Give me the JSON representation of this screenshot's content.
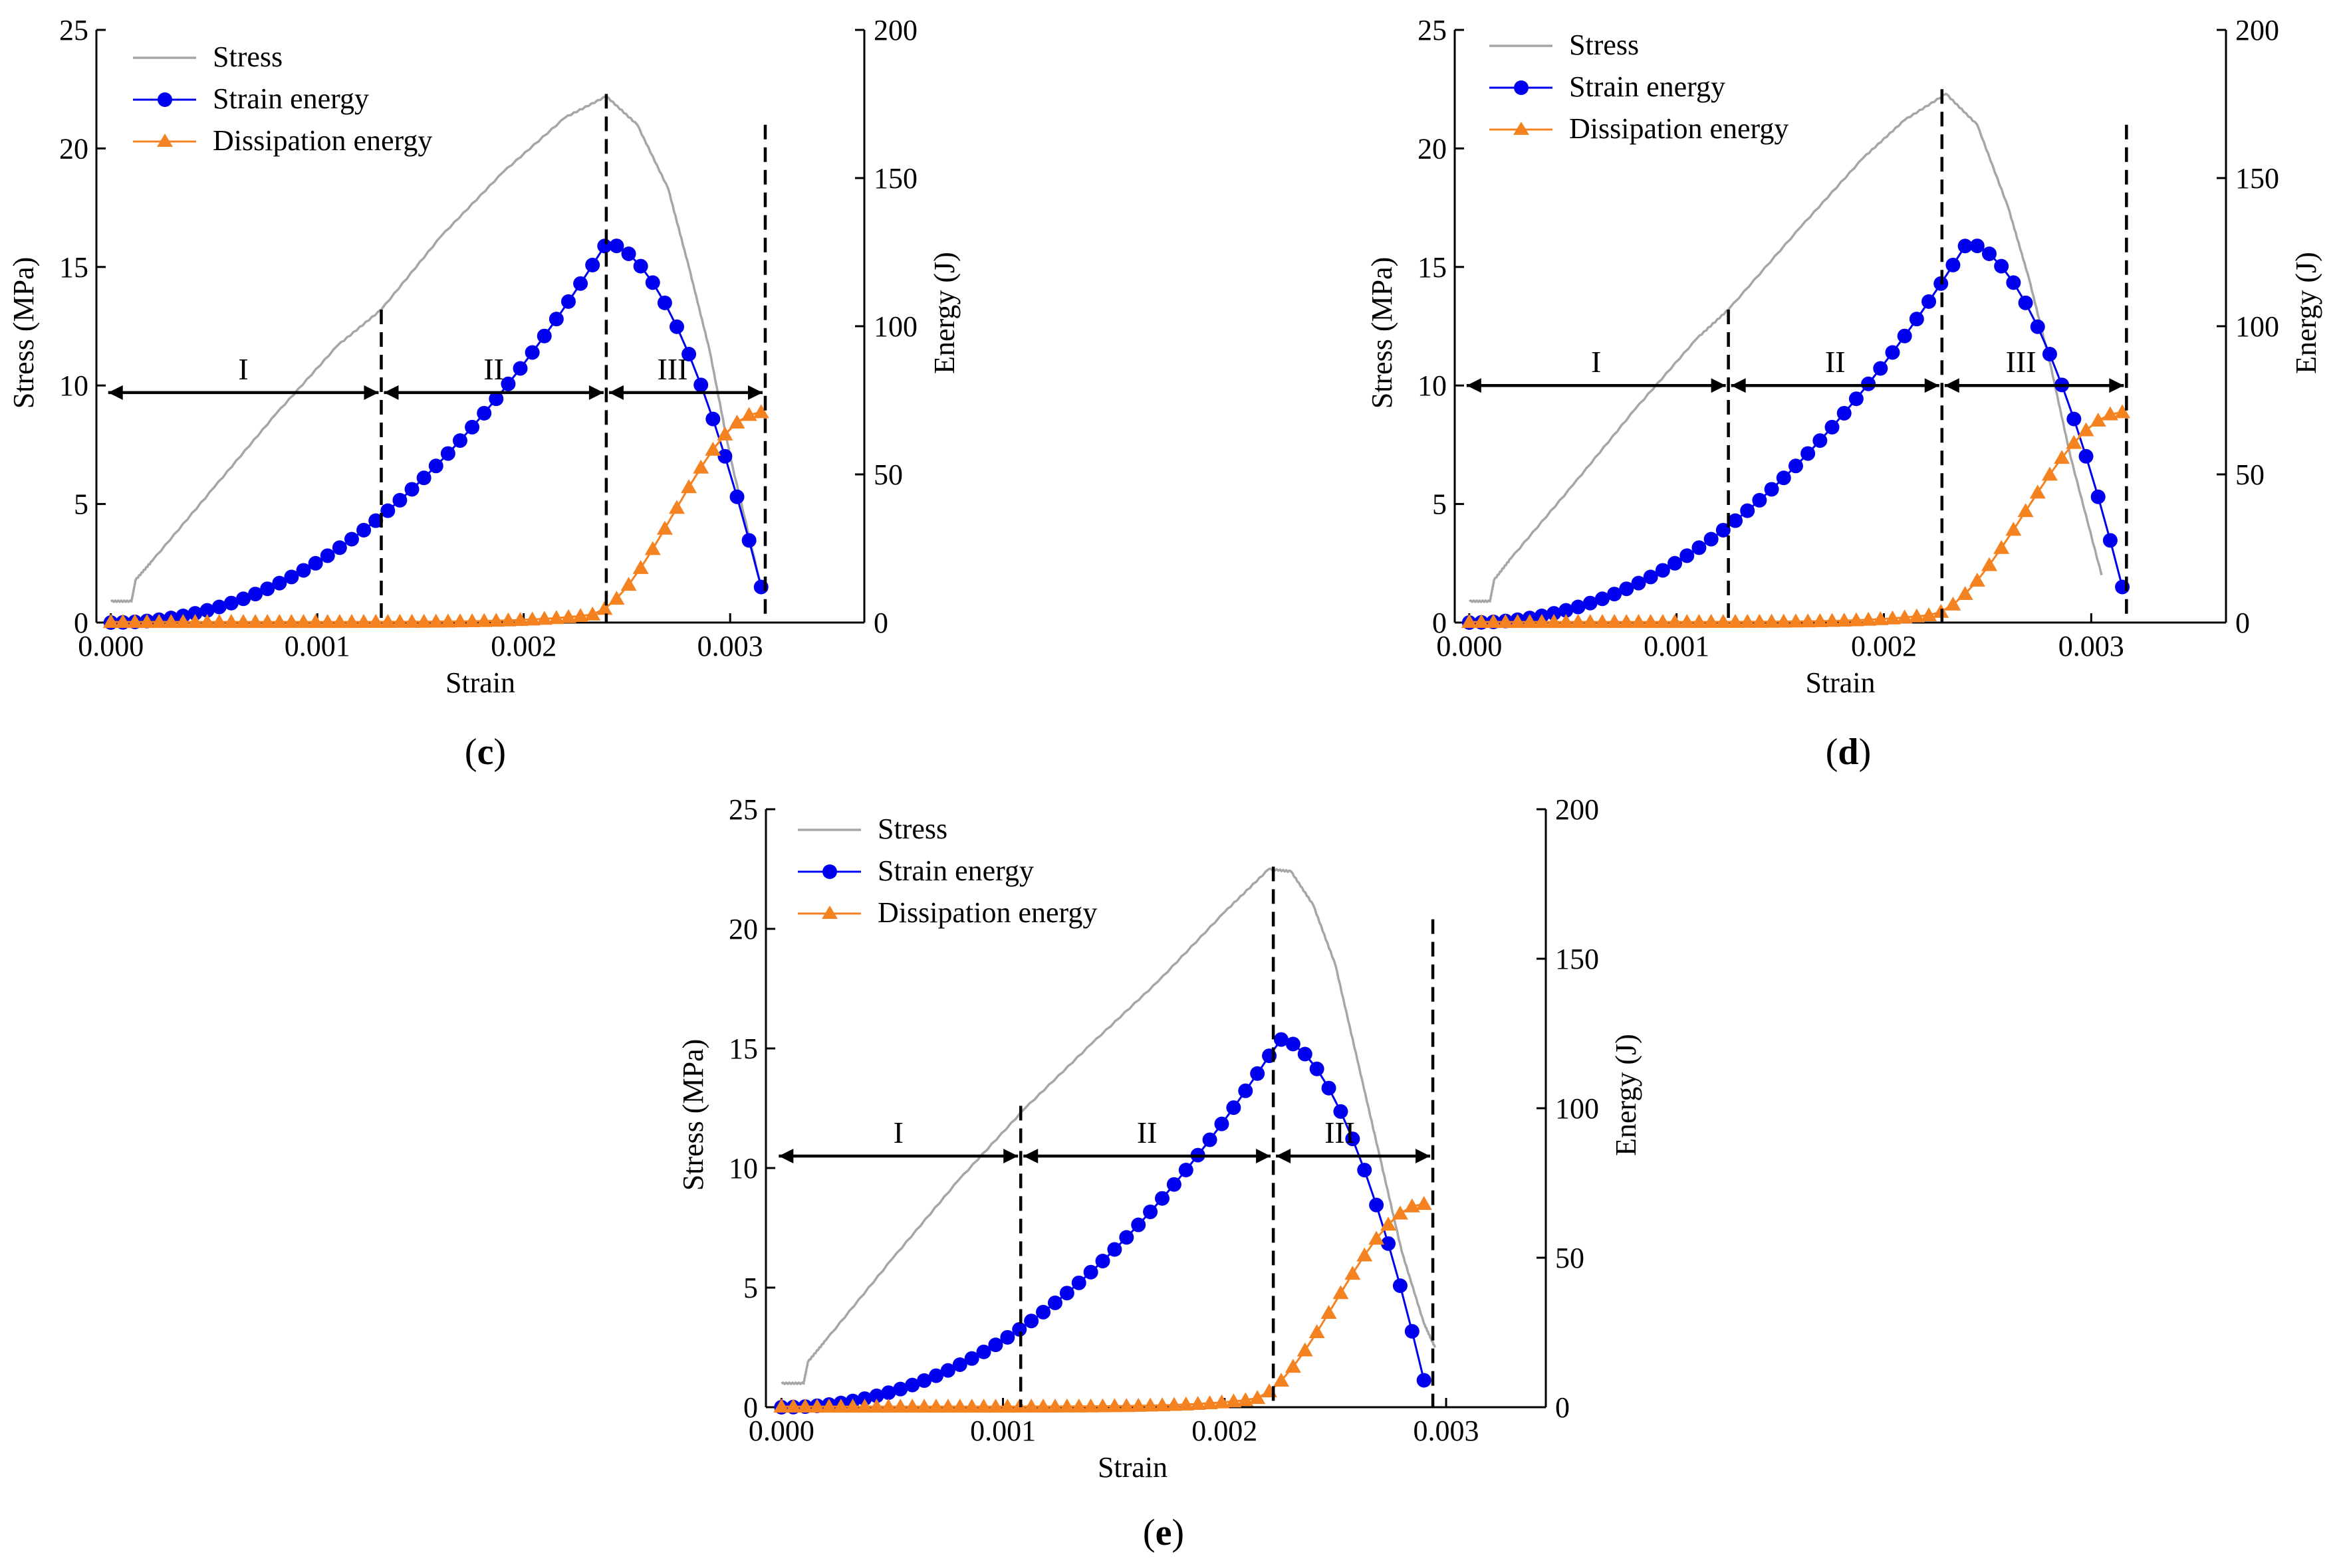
{
  "figure": {
    "legend": {
      "stress": "Stress",
      "strain_energy": "Strain energy",
      "dissipation_energy": "Dissipation energy"
    },
    "colors": {
      "stress": "#a6a6a6",
      "strain_energy": "#0000ee",
      "dissipation_energy": "#f58220",
      "axes": "#000000"
    }
  },
  "chart_data": [
    {
      "panel": "c",
      "caption_open": "(",
      "caption_letter": "c",
      "caption_close": ")",
      "type": "line",
      "xlabel": "Strain",
      "ylabel": "Stress (MPa)",
      "y2label": "Energy (J)",
      "xlim": [
        -7e-05,
        0.00365
      ],
      "ylim": [
        0,
        25
      ],
      "y2lim": [
        0,
        200
      ],
      "xticks": [
        "0.000",
        "0.001",
        "0.002",
        "0.003"
      ],
      "yticks": [
        "0",
        "5",
        "10",
        "15",
        "20",
        "25"
      ],
      "y2ticks": [
        "0",
        "50",
        "100",
        "150",
        "200"
      ],
      "stress": {
        "x": [
          0,
          0.0001,
          0.00012,
          0.0002,
          0.0005,
          0.0008,
          0.0011,
          0.00131,
          0.0016,
          0.0019,
          0.0022,
          0.0024,
          0.00255,
          0.0027,
          0.0028,
          0.0029,
          0.003,
          0.00315
        ],
        "y": [
          0.9,
          0.9,
          1.8,
          2.6,
          5.7,
          8.8,
          11.7,
          13.2,
          16.3,
          19.0,
          21.3,
          22.2,
          21.0,
          18.3,
          15.0,
          11.5,
          7.0,
          1.5
        ]
      },
      "strain_energy": {
        "x0": 0.0,
        "x1": 0.00315,
        "n": 55,
        "peak_x": 0.0024,
        "peak": 128,
        "end": 12
      },
      "dissipation_energy": {
        "x0": 0.0,
        "x1": 0.00315,
        "n": 55,
        "start_x": 0.0023,
        "end": 71
      },
      "boundaries": [
        {
          "x": 0.00131,
          "top": 13.2
        },
        {
          "x": 0.0024,
          "top": 22.3
        },
        {
          "x": 0.00317,
          "top": 21.0
        }
      ],
      "arrow_y": 9.7,
      "regions": [
        "I",
        "II",
        "III"
      ]
    },
    {
      "panel": "d",
      "caption_open": "(",
      "caption_letter": "d",
      "caption_close": ")",
      "type": "line",
      "xlabel": "Strain",
      "ylabel": "Stress (MPa)",
      "y2label": "Energy (J)",
      "xlim": [
        -7e-05,
        0.00365
      ],
      "ylim": [
        0,
        25
      ],
      "y2lim": [
        0,
        200
      ],
      "xticks": [
        "0.000",
        "0.001",
        "0.002",
        "0.003"
      ],
      "yticks": [
        "0",
        "5",
        "10",
        "15",
        "20",
        "25"
      ],
      "y2ticks": [
        "0",
        "50",
        "100",
        "150",
        "200"
      ],
      "stress": {
        "x": [
          0,
          0.0001,
          0.00012,
          0.0002,
          0.0005,
          0.0008,
          0.0011,
          0.00125,
          0.0016,
          0.0019,
          0.0021,
          0.0023,
          0.00245,
          0.0026,
          0.0027,
          0.0028,
          0.0029,
          0.00305
        ],
        "y": [
          0.9,
          0.9,
          1.8,
          2.7,
          5.8,
          9.0,
          12.0,
          13.2,
          16.7,
          19.6,
          21.2,
          22.3,
          21.0,
          17.5,
          14.5,
          11.0,
          7.0,
          2.0
        ]
      },
      "strain_energy": {
        "x0": 0.0,
        "x1": 0.00315,
        "n": 55,
        "peak_x": 0.0024,
        "peak": 128,
        "end": 12
      },
      "dissipation_energy": {
        "x0": 0.0,
        "x1": 0.00315,
        "n": 55,
        "start_x": 0.0022,
        "end": 71
      },
      "boundaries": [
        {
          "x": 0.00125,
          "top": 13.2
        },
        {
          "x": 0.00228,
          "top": 22.5
        },
        {
          "x": 0.00317,
          "top": 21.0
        }
      ],
      "arrow_y": 10.0,
      "regions": [
        "I",
        "II",
        "III"
      ]
    },
    {
      "panel": "e",
      "caption_open": "(",
      "caption_letter": "e",
      "caption_close": ")",
      "type": "line",
      "xlabel": "Strain",
      "ylabel": "Stress (MPa)",
      "y2label": "Energy (J)",
      "xlim": [
        -7e-05,
        0.00345
      ],
      "ylim": [
        0,
        25
      ],
      "y2lim": [
        0,
        200
      ],
      "xticks": [
        "0.000",
        "0.001",
        "0.002",
        "0.003"
      ],
      "yticks": [
        "0",
        "5",
        "10",
        "15",
        "20",
        "25"
      ],
      "y2ticks": [
        "0",
        "50",
        "100",
        "150",
        "200"
      ],
      "stress": {
        "x": [
          0,
          0.0001,
          0.00012,
          0.0002,
          0.0005,
          0.0008,
          0.0011,
          0.0014,
          0.0017,
          0.002,
          0.0022,
          0.0023,
          0.0024,
          0.0025,
          0.0026,
          0.0027,
          0.0028,
          0.0029,
          0.00295
        ],
        "y": [
          1.0,
          1.0,
          1.9,
          2.8,
          6.2,
          9.5,
          12.5,
          15.2,
          17.8,
          20.7,
          22.5,
          22.4,
          21.0,
          18.5,
          14.5,
          10.5,
          6.5,
          3.5,
          2.5
        ]
      },
      "strain_energy": {
        "x0": 0.0,
        "x1": 0.0029,
        "n": 55,
        "peak_x": 0.00225,
        "peak": 123,
        "end": 9
      },
      "dissipation_energy": {
        "x0": 0.0,
        "x1": 0.0029,
        "n": 55,
        "start_x": 0.0021,
        "end": 68
      },
      "boundaries": [
        {
          "x": 0.00108,
          "top": 12.6
        },
        {
          "x": 0.00222,
          "top": 22.6
        },
        {
          "x": 0.00294,
          "top": 20.4
        }
      ],
      "arrow_y": 10.5,
      "regions": [
        "I",
        "II",
        "III"
      ]
    }
  ]
}
